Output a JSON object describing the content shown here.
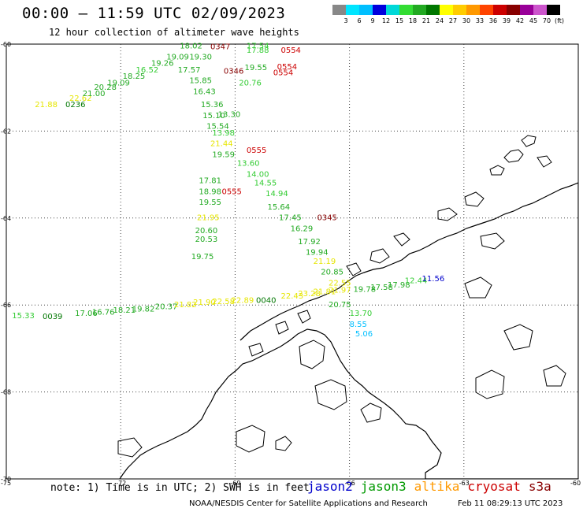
{
  "title": "00:00 – 11:59 UTC 02/09/2023",
  "subtitle": "12 hour collection of altimeter wave heights",
  "colorbar": {
    "ticks": [
      "3",
      "6",
      "9",
      "12",
      "15",
      "18",
      "21",
      "24",
      "27",
      "30",
      "33",
      "36",
      "39",
      "42",
      "45",
      "70"
    ],
    "unit": "(ft)",
    "colors": [
      "#888888",
      "#00e5ff",
      "#00bfff",
      "#0000dd",
      "#00d8d8",
      "#33dd33",
      "#22aa22",
      "#007700",
      "#ffff00",
      "#ffcc00",
      "#ff9900",
      "#ff4400",
      "#cc0000",
      "#880000",
      "#990099",
      "#cc55cc",
      "#000000"
    ]
  },
  "axes": {
    "lat_labels": [
      "-60",
      "-62",
      "-64",
      "-66",
      "-68",
      "-70"
    ],
    "lon_labels": [
      "-75",
      "-72",
      "-69",
      "-66",
      "-63",
      "-60"
    ]
  },
  "note": "note: 1) Time is in UTC; 2) SWH is in feet",
  "legend": [
    {
      "name": "jason2",
      "color": "#0000cc"
    },
    {
      "name": "jason3",
      "color": "#009900"
    },
    {
      "name": "altika",
      "color": "#ff9900"
    },
    {
      "name": "cryosat",
      "color": "#cc0000"
    },
    {
      "name": "s3a",
      "color": "#880000"
    }
  ],
  "credit": "NOAA/NESDIS Center for Satellite Applications and Research",
  "credit_time": "Feb 11 08:29:13 UTC 2023",
  "observations": [
    {
      "text": "21.88",
      "color": "#e6e600",
      "lat": -61.45,
      "lon": -74.25
    },
    {
      "text": "0236",
      "color": "#007700",
      "lat": -61.45,
      "lon": -73.45,
      "time": true
    },
    {
      "text": "22.62",
      "color": "#e6e600",
      "lat": -61.3,
      "lon": -73.35
    },
    {
      "text": "21.00",
      "color": "#22aa22",
      "lat": -61.2,
      "lon": -73.0
    },
    {
      "text": "20.28",
      "color": "#22aa22",
      "lat": -61.05,
      "lon": -72.7
    },
    {
      "text": "19.09",
      "color": "#22aa22",
      "lat": -60.95,
      "lon": -72.35
    },
    {
      "text": "18.25",
      "color": "#22aa22",
      "lat": -60.8,
      "lon": -71.95
    },
    {
      "text": "16.52",
      "color": "#33cc33",
      "lat": -60.65,
      "lon": -71.6
    },
    {
      "text": "19.26",
      "color": "#22aa22",
      "lat": -60.5,
      "lon": -71.2
    },
    {
      "text": "19.09",
      "color": "#22aa22",
      "lat": -60.35,
      "lon": -70.8
    },
    {
      "text": "18.02",
      "color": "#22aa22",
      "lat": -60.1,
      "lon": -70.45
    },
    {
      "text": "19.30",
      "color": "#22aa22",
      "lat": -60.35,
      "lon": -70.2
    },
    {
      "text": "0347",
      "color": "#880000",
      "lat": -60.12,
      "lon": -69.65,
      "time": true
    },
    {
      "text": "17.54",
      "color": "#33cc33",
      "lat": -60.1,
      "lon": -68.7
    },
    {
      "text": "17.88",
      "color": "#33cc33",
      "lat": -60.2,
      "lon": -68.7
    },
    {
      "text": "0554",
      "color": "#cc0000",
      "lat": -60.2,
      "lon": -67.8,
      "time": true
    },
    {
      "text": "17.57",
      "color": "#22aa22",
      "lat": -60.65,
      "lon": -70.5
    },
    {
      "text": "0346",
      "color": "#880000",
      "lat": -60.68,
      "lon": -69.3,
      "time": true
    },
    {
      "text": "19.55",
      "color": "#22aa22",
      "lat": -60.6,
      "lon": -68.75
    },
    {
      "text": "0554",
      "color": "#cc0000",
      "lat": -60.58,
      "lon": -67.9,
      "time": true
    },
    {
      "text": "0554",
      "color": "#cc0000",
      "lat": -60.72,
      "lon": -68.0,
      "time": true
    },
    {
      "text": "20.76",
      "color": "#33cc33",
      "lat": -60.95,
      "lon": -68.9
    },
    {
      "text": "15.85",
      "color": "#22aa22",
      "lat": -60.9,
      "lon": -70.2
    },
    {
      "text": "16.43",
      "color": "#22aa22",
      "lat": -61.15,
      "lon": -70.1
    },
    {
      "text": "15.36",
      "color": "#22aa22",
      "lat": -61.45,
      "lon": -69.9
    },
    {
      "text": "15.10",
      "color": "#22aa22",
      "lat": -61.7,
      "lon": -69.85
    },
    {
      "text": "13.30",
      "color": "#22aa22",
      "lat": -61.68,
      "lon": -69.45
    },
    {
      "text": "15.54",
      "color": "#22aa22",
      "lat": -61.95,
      "lon": -69.75
    },
    {
      "text": "13.98",
      "color": "#33cc33",
      "lat": -62.1,
      "lon": -69.6
    },
    {
      "text": "21.44",
      "color": "#e6e600",
      "lat": -62.35,
      "lon": -69.65
    },
    {
      "text": "19.59",
      "color": "#22aa22",
      "lat": -62.6,
      "lon": -69.6
    },
    {
      "text": "0555",
      "color": "#cc0000",
      "lat": -62.5,
      "lon": -68.7,
      "time": true
    },
    {
      "text": "13.60",
      "color": "#33cc33",
      "lat": -62.8,
      "lon": -68.95
    },
    {
      "text": "14.00",
      "color": "#33cc33",
      "lat": -63.05,
      "lon": -68.7
    },
    {
      "text": "17.81",
      "color": "#22aa22",
      "lat": -63.2,
      "lon": -69.95
    },
    {
      "text": "14.55",
      "color": "#33cc33",
      "lat": -63.25,
      "lon": -68.5
    },
    {
      "text": "18.98",
      "color": "#22aa22",
      "lat": -63.45,
      "lon": -69.95
    },
    {
      "text": "0555",
      "color": "#cc0000",
      "lat": -63.45,
      "lon": -69.35,
      "time": true
    },
    {
      "text": "14.94",
      "color": "#33cc33",
      "lat": -63.5,
      "lon": -68.2
    },
    {
      "text": "19.55",
      "color": "#22aa22",
      "lat": -63.7,
      "lon": -69.95
    },
    {
      "text": "15.64",
      "color": "#22aa22",
      "lat": -63.8,
      "lon": -68.15
    },
    {
      "text": "21.95",
      "color": "#e6e600",
      "lat": -64.05,
      "lon": -70.0
    },
    {
      "text": "17.45",
      "color": "#22aa22",
      "lat": -64.05,
      "lon": -67.85
    },
    {
      "text": "0345",
      "color": "#880000",
      "lat": -64.05,
      "lon": -66.85,
      "time": true
    },
    {
      "text": "16.29",
      "color": "#22aa22",
      "lat": -64.3,
      "lon": -67.55
    },
    {
      "text": "20.60",
      "color": "#22aa22",
      "lat": -64.35,
      "lon": -70.05
    },
    {
      "text": "20.53",
      "color": "#22aa22",
      "lat": -64.55,
      "lon": -70.05
    },
    {
      "text": "17.92",
      "color": "#22aa22",
      "lat": -64.6,
      "lon": -67.35
    },
    {
      "text": "19.94",
      "color": "#22aa22",
      "lat": -64.85,
      "lon": -67.15
    },
    {
      "text": "19.75",
      "color": "#22aa22",
      "lat": -64.95,
      "lon": -70.15
    },
    {
      "text": "21.19",
      "color": "#e6e600",
      "lat": -65.05,
      "lon": -66.95
    },
    {
      "text": "20.85",
      "color": "#22aa22",
      "lat": -65.3,
      "lon": -66.75
    },
    {
      "text": "22.55",
      "color": "#e6e600",
      "lat": -65.55,
      "lon": -66.55
    },
    {
      "text": "19.78",
      "color": "#22aa22",
      "lat": -65.7,
      "lon": -65.9
    },
    {
      "text": "17.58",
      "color": "#22aa22",
      "lat": -65.65,
      "lon": -65.45
    },
    {
      "text": "17.98",
      "color": "#22aa22",
      "lat": -65.6,
      "lon": -65.0
    },
    {
      "text": "12.44",
      "color": "#33cc33",
      "lat": -65.5,
      "lon": -64.55
    },
    {
      "text": "11.56",
      "color": "#0000cc",
      "lat": -65.45,
      "lon": -64.1
    },
    {
      "text": "20.75",
      "color": "#22aa22",
      "lat": -66.05,
      "lon": -66.55
    },
    {
      "text": "13.70",
      "color": "#33cc33",
      "lat": -66.25,
      "lon": -66.0
    },
    {
      "text": "8.55",
      "color": "#00bfff",
      "lat": -66.5,
      "lon": -66.0
    },
    {
      "text": "5.06",
      "color": "#00bfff",
      "lat": -66.72,
      "lon": -65.85
    },
    {
      "text": "15.33",
      "color": "#33cc33",
      "lat": -66.3,
      "lon": -74.85
    },
    {
      "text": "0039",
      "color": "#007700",
      "lat": -66.32,
      "lon": -74.05,
      "time": true
    },
    {
      "text": "17.06",
      "color": "#22aa22",
      "lat": -66.25,
      "lon": -73.2
    },
    {
      "text": "16.76",
      "color": "#22aa22",
      "lat": -66.22,
      "lon": -72.75
    },
    {
      "text": "18.21",
      "color": "#22aa22",
      "lat": -66.18,
      "lon": -72.2
    },
    {
      "text": "19.82",
      "color": "#22aa22",
      "lat": -66.15,
      "lon": -71.7
    },
    {
      "text": "20.37",
      "color": "#22aa22",
      "lat": -66.1,
      "lon": -71.1
    },
    {
      "text": "21.82",
      "color": "#e6e600",
      "lat": -66.05,
      "lon": -70.6
    },
    {
      "text": "21.90",
      "color": "#e6e600",
      "lat": -66.0,
      "lon": -70.1
    },
    {
      "text": "22.58",
      "color": "#e6e600",
      "lat": -65.98,
      "lon": -69.6
    },
    {
      "text": "22.89",
      "color": "#e6e600",
      "lat": -65.95,
      "lon": -69.1
    },
    {
      "text": "0040",
      "color": "#007700",
      "lat": -65.95,
      "lon": -68.45,
      "time": true
    },
    {
      "text": "22.43",
      "color": "#e6e600",
      "lat": -65.85,
      "lon": -67.8
    },
    {
      "text": "23.28",
      "color": "#e6e600",
      "lat": -65.8,
      "lon": -67.35
    },
    {
      "text": "21.81",
      "color": "#e6e600",
      "lat": -65.75,
      "lon": -66.95
    },
    {
      "text": "21.97",
      "color": "#e6e600",
      "lat": -65.72,
      "lon": -66.55
    }
  ]
}
